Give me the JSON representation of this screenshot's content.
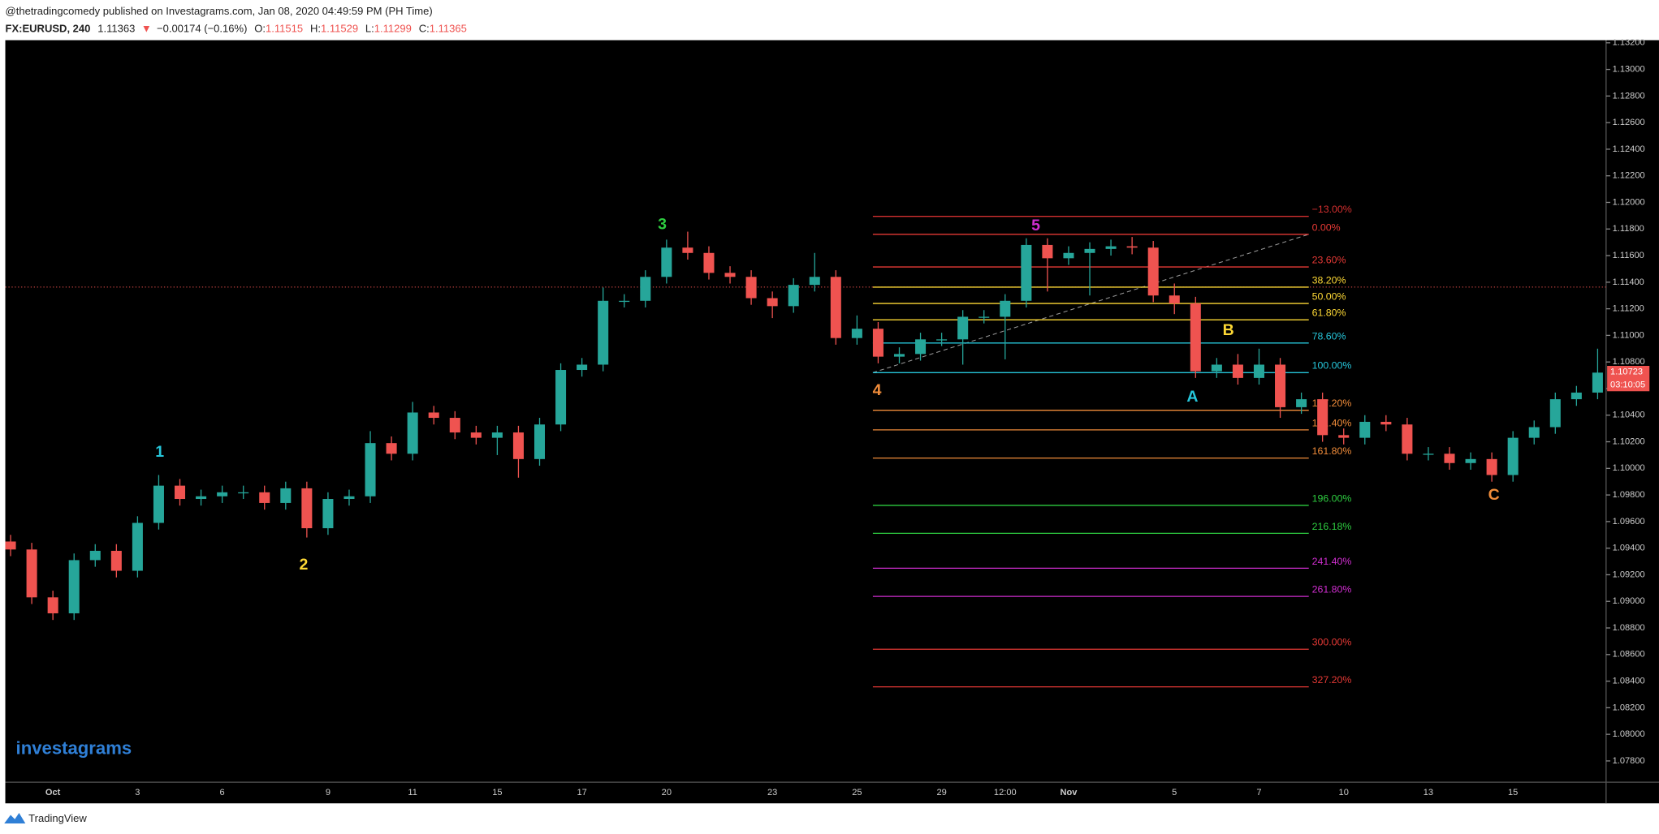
{
  "header": {
    "publisher": "@thetradingcomedy published on Investagrams.com, Jan 08, 2020 04:49:59 PM (PH Time)",
    "symbol": "FX:EURUSD, 240",
    "last": 1.11363,
    "arrow": "▼",
    "change": "−0.00174 (−0.16%)",
    "o_label": "O:",
    "o": 1.11515,
    "h_label": "H:",
    "h": 1.11529,
    "l_label": "L:",
    "l": 1.11299,
    "c_label": "C:",
    "c": 1.11365
  },
  "chart_data": {
    "type": "candlestick",
    "up_color": "#26a69a",
    "down_color": "#ef5350",
    "categories": [
      null,
      null,
      "Oct",
      null,
      null,
      null,
      "3",
      null,
      null,
      null,
      "6",
      null,
      null,
      null,
      null,
      "9",
      null,
      null,
      null,
      "11",
      null,
      null,
      null,
      "15",
      null,
      null,
      null,
      "17",
      null,
      null,
      null,
      "20",
      null,
      null,
      null,
      null,
      "23",
      null,
      null,
      null,
      "25",
      null,
      null,
      null,
      "29",
      null,
      null,
      "12:00",
      null,
      null,
      "Nov",
      null,
      null,
      null,
      null,
      "5",
      null,
      null,
      null,
      "7",
      null,
      null,
      null,
      "10",
      null,
      null,
      null,
      "13",
      null,
      null,
      null,
      "15",
      null,
      null,
      null,
      null
    ],
    "open": [
      1.0945,
      1.0939,
      1.0903,
      1.0891,
      1.0931,
      1.0938,
      1.0923,
      1.0959,
      1.0987,
      1.0977,
      1.0979,
      1.0982,
      1.0982,
      1.0974,
      1.0985,
      1.0955,
      1.0977,
      1.0979,
      1.1019,
      1.1011,
      1.1042,
      1.1038,
      1.1027,
      1.1023,
      1.1027,
      1.1007,
      1.1033,
      1.1074,
      1.1078,
      1.1126,
      1.1126,
      1.1144,
      1.1166,
      1.1162,
      1.1147,
      1.1144,
      1.1128,
      1.1122,
      1.1138,
      1.1144,
      1.1098,
      1.1105,
      1.1084,
      1.1086,
      1.1097,
      1.1097,
      1.1114,
      1.1114,
      1.1126,
      1.1168,
      1.1158,
      1.1162,
      1.1165,
      1.1167,
      1.1166,
      1.113,
      1.1124,
      1.1073,
      1.1078,
      1.1068,
      1.1078,
      1.1046,
      1.1052,
      1.1025,
      1.1023,
      1.1035,
      1.1033,
      1.1011,
      1.1011,
      1.1004,
      1.1007,
      1.0995,
      1.1023,
      1.1031,
      1.1052,
      1.1057
    ],
    "high": [
      1.095,
      1.0944,
      1.0908,
      1.0936,
      1.0943,
      1.0943,
      1.0964,
      1.0995,
      1.0992,
      1.0984,
      1.0987,
      1.0987,
      1.0987,
      1.099,
      1.099,
      1.0982,
      1.0984,
      1.1028,
      1.1024,
      1.105,
      1.1047,
      1.1043,
      1.1032,
      1.1032,
      1.1032,
      1.1038,
      1.1079,
      1.1083,
      1.1136,
      1.1131,
      1.1149,
      1.1172,
      1.1178,
      1.1167,
      1.1152,
      1.1149,
      1.1133,
      1.1143,
      1.1162,
      1.1149,
      1.1115,
      1.111,
      1.1091,
      1.1102,
      1.1102,
      1.1119,
      1.1119,
      1.1131,
      1.1173,
      1.1173,
      1.1167,
      1.117,
      1.1172,
      1.1174,
      1.1171,
      1.1139,
      1.1129,
      1.1083,
      1.1086,
      1.109,
      1.1083,
      1.1057,
      1.1057,
      1.103,
      1.104,
      1.104,
      1.1038,
      1.1016,
      1.1016,
      1.1012,
      1.1012,
      1.1028,
      1.1036,
      1.1057,
      1.1062,
      1.109
    ],
    "low": [
      1.0934,
      1.0898,
      1.0886,
      1.0886,
      1.0926,
      1.0918,
      1.0918,
      1.0954,
      1.0972,
      1.0972,
      1.0974,
      1.0977,
      1.0969,
      1.0969,
      1.0948,
      1.095,
      1.0972,
      1.0974,
      1.1006,
      1.1006,
      1.1033,
      1.1022,
      1.1018,
      1.101,
      1.0993,
      1.1002,
      1.1028,
      1.1069,
      1.1073,
      1.1121,
      1.1121,
      1.1139,
      1.1157,
      1.1142,
      1.1139,
      1.1123,
      1.1113,
      1.1117,
      1.1133,
      1.1093,
      1.1093,
      1.1079,
      1.1079,
      1.1081,
      1.1092,
      1.1078,
      1.1109,
      1.1082,
      1.1121,
      1.1133,
      1.1153,
      1.113,
      1.116,
      1.1161,
      1.1125,
      1.1116,
      1.1068,
      1.1068,
      1.1063,
      1.1063,
      1.1038,
      1.1041,
      1.102,
      1.1018,
      1.1018,
      1.1028,
      1.1006,
      1.1006,
      1.0999,
      1.0999,
      1.099,
      1.099,
      1.1018,
      1.1026,
      1.1047,
      1.1052
    ],
    "close": [
      1.0939,
      1.0903,
      1.0891,
      1.0931,
      1.0938,
      1.0923,
      1.0959,
      1.0987,
      1.0977,
      1.0979,
      1.0982,
      1.0982,
      1.0974,
      1.0985,
      1.0955,
      1.0977,
      1.0979,
      1.1019,
      1.1011,
      1.1042,
      1.1038,
      1.1027,
      1.1023,
      1.1027,
      1.1007,
      1.1033,
      1.1074,
      1.1078,
      1.1126,
      1.1126,
      1.1144,
      1.1166,
      1.1162,
      1.1147,
      1.1144,
      1.1128,
      1.1122,
      1.1138,
      1.1144,
      1.1098,
      1.1105,
      1.1084,
      1.1086,
      1.1097,
      1.1097,
      1.1114,
      1.1114,
      1.1126,
      1.1168,
      1.1158,
      1.1162,
      1.1165,
      1.1167,
      1.1166,
      1.113,
      1.1124,
      1.1073,
      1.1078,
      1.1068,
      1.1078,
      1.1046,
      1.1052,
      1.1025,
      1.1023,
      1.1035,
      1.1033,
      1.1011,
      1.1011,
      1.1004,
      1.1007,
      1.0995,
      1.1023,
      1.1031,
      1.1052,
      1.1057,
      1.1072
    ],
    "ylim": [
      1.0764,
      1.1322
    ],
    "yticks": [
      {
        "value": 1.078,
        "label": "1.07800"
      },
      {
        "value": 1.08,
        "label": "1.08000"
      },
      {
        "value": 1.082,
        "label": "1.08200"
      },
      {
        "value": 1.084,
        "label": "1.08400"
      },
      {
        "value": 1.086,
        "label": "1.08600"
      },
      {
        "value": 1.088,
        "label": "1.08800"
      },
      {
        "value": 1.09,
        "label": "1.09000"
      },
      {
        "value": 1.092,
        "label": "1.09200"
      },
      {
        "value": 1.094,
        "label": "1.09400"
      },
      {
        "value": 1.096,
        "label": "1.09600"
      },
      {
        "value": 1.098,
        "label": "1.09800"
      },
      {
        "value": 1.1,
        "label": "1.10000"
      },
      {
        "value": 1.102,
        "label": "1.10200"
      },
      {
        "value": 1.104,
        "label": "1.10400"
      },
      {
        "value": 1.106,
        "label": "1.10600"
      },
      {
        "value": 1.108,
        "label": "1.10800"
      },
      {
        "value": 1.11,
        "label": "1.11000"
      },
      {
        "value": 1.112,
        "label": "1.11200"
      },
      {
        "value": 1.114,
        "label": "1.11400"
      },
      {
        "value": 1.116,
        "label": "1.11600"
      },
      {
        "value": 1.118,
        "label": "1.11800"
      },
      {
        "value": 1.12,
        "label": "1.12000"
      },
      {
        "value": 1.122,
        "label": "1.12200"
      },
      {
        "value": 1.124,
        "label": "1.12400"
      },
      {
        "value": 1.126,
        "label": "1.12600"
      },
      {
        "value": 1.128,
        "label": "1.12800"
      },
      {
        "value": 1.13,
        "label": "1.13000"
      },
      {
        "value": 1.132,
        "label": "1.13200"
      }
    ],
    "grid": false,
    "last_price": {
      "value": 1.10723,
      "label": "1.10723",
      "countdown": "03:10:05",
      "color": "#ef5350"
    },
    "fibonacci": {
      "price_0": 1.1176,
      "price_100": 1.1072,
      "levels": [
        {
          "value": -13,
          "label": "−13.00%",
          "color": "#d32f2f"
        },
        {
          "value": 0,
          "label": "0.00%",
          "color": "#e53935"
        },
        {
          "value": 23.6,
          "label": "23.60%",
          "color": "#e53935"
        },
        {
          "value": 38.2,
          "label": "38.20%",
          "color": "#fdd835"
        },
        {
          "value": 50,
          "label": "50.00%",
          "color": "#fdd835"
        },
        {
          "value": 61.8,
          "label": "61.80%",
          "color": "#fdd835"
        },
        {
          "value": 78.6,
          "label": "78.60%",
          "color": "#26c6da"
        },
        {
          "value": 100,
          "label": "100.00%",
          "color": "#26c6da"
        },
        {
          "value": 127.2,
          "label": "127.20%",
          "color": "#f08c3a"
        },
        {
          "value": 141.4,
          "label": "141.40%",
          "color": "#f08c3a"
        },
        {
          "value": 161.8,
          "label": "161.80%",
          "color": "#f08c3a"
        },
        {
          "value": 196,
          "label": "196.00%",
          "color": "#2ecc40"
        },
        {
          "value": 216.18,
          "label": "216.18%",
          "color": "#2ecc40"
        },
        {
          "value": 241.4,
          "label": "241.40%",
          "color": "#d02ed0"
        },
        {
          "value": 261.8,
          "label": "261.80%",
          "color": "#d02ed0"
        },
        {
          "value": 300,
          "label": "300.00%",
          "color": "#e53935"
        },
        {
          "value": 327.2,
          "label": "327.20%",
          "color": "#e53935"
        }
      ]
    },
    "waves": [
      {
        "label": "1",
        "color": "#26c6da"
      },
      {
        "label": "2",
        "color": "#fdd835"
      },
      {
        "label": "3",
        "color": "#2ecc40"
      },
      {
        "label": "4",
        "color": "#f08c3a"
      },
      {
        "label": "5",
        "color": "#d02ed0"
      },
      {
        "label": "A",
        "color": "#26c6da"
      },
      {
        "label": "B",
        "color": "#fdd835"
      },
      {
        "label": "C",
        "color": "#f08c3a"
      }
    ]
  },
  "watermark": "investagrams",
  "footer": "TradingView"
}
